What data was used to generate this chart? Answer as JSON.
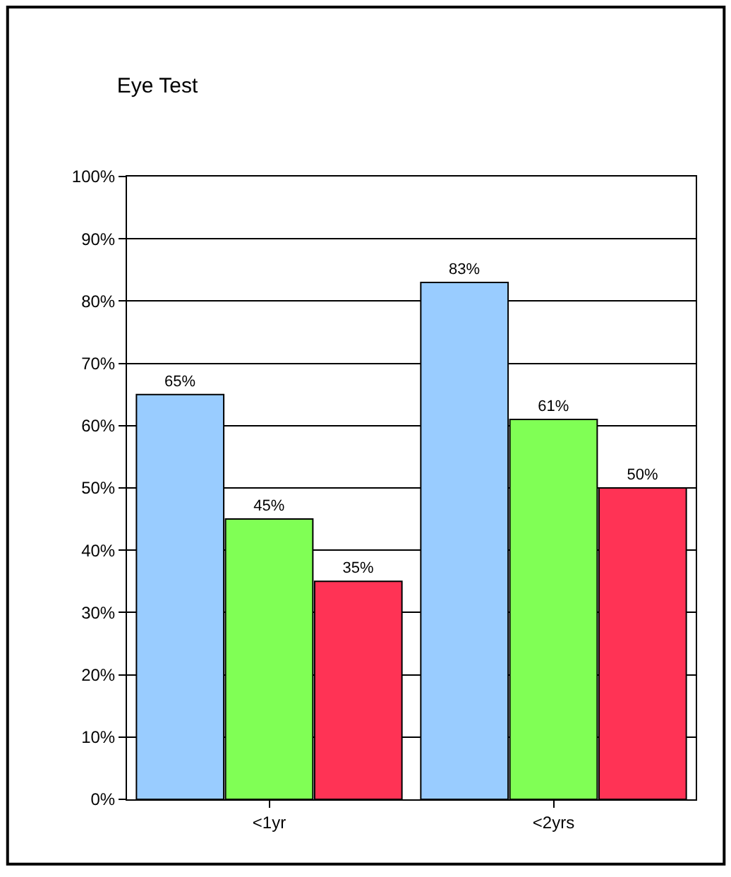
{
  "chart_data": {
    "type": "bar",
    "title": "Eye Test",
    "categories": [
      "<1yr",
      "<2yrs"
    ],
    "series": [
      {
        "color": "#99ccff",
        "values": [
          65,
          83
        ],
        "value_labels": [
          "65%",
          "83%"
        ]
      },
      {
        "color": "#80ff55",
        "values": [
          45,
          61
        ],
        "value_labels": [
          "45%",
          "61%"
        ]
      },
      {
        "color": "#ff3355",
        "values": [
          35,
          50
        ],
        "value_labels": [
          "35%",
          "50%"
        ]
      }
    ],
    "ylim": [
      0,
      100
    ],
    "yticks": [
      {
        "value": 0,
        "label": "0%"
      },
      {
        "value": 10,
        "label": "10%"
      },
      {
        "value": 20,
        "label": "20%"
      },
      {
        "value": 30,
        "label": "30%"
      },
      {
        "value": 40,
        "label": "40%"
      },
      {
        "value": 50,
        "label": "50%"
      },
      {
        "value": 60,
        "label": "60%"
      },
      {
        "value": 70,
        "label": "70%"
      },
      {
        "value": 80,
        "label": "80%"
      },
      {
        "value": 90,
        "label": "90%"
      },
      {
        "value": 100,
        "label": "100%"
      }
    ],
    "grid": "y"
  }
}
